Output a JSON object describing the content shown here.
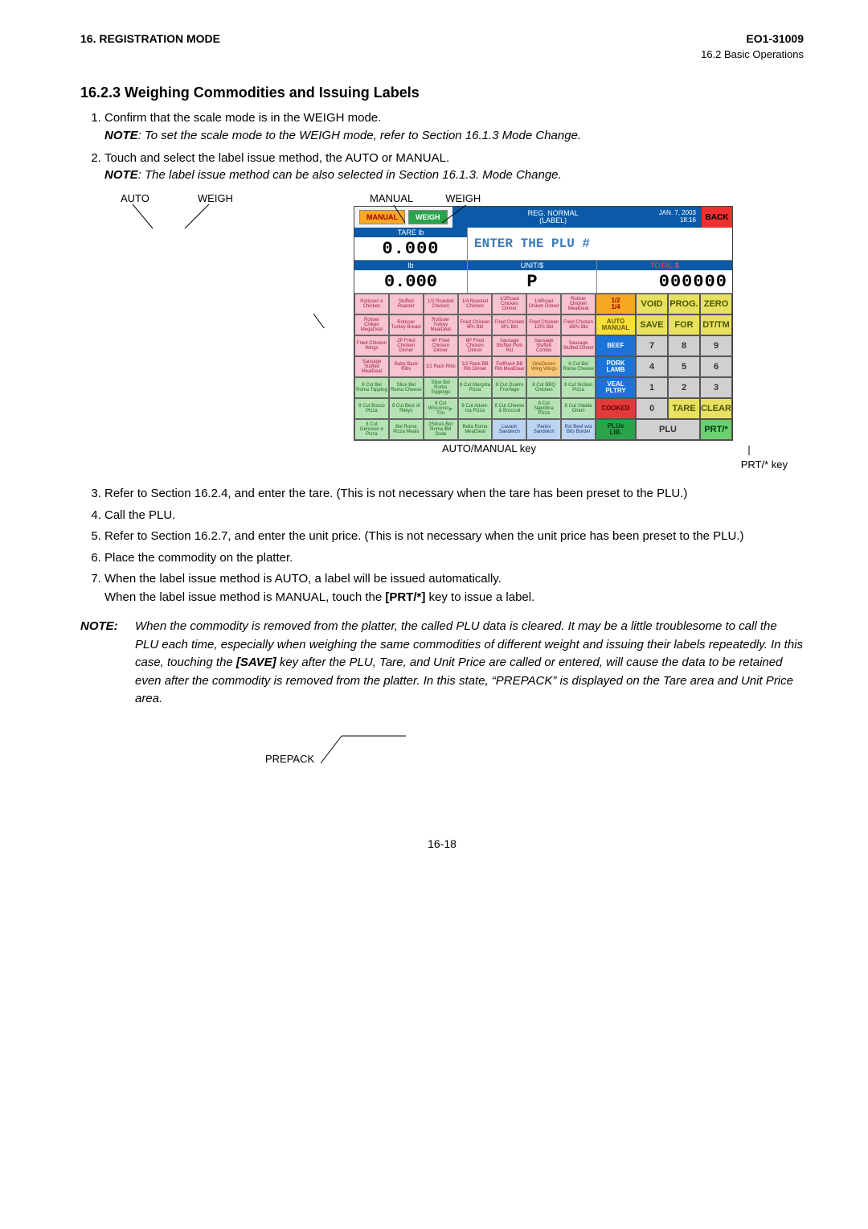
{
  "header": {
    "left": "16. REGISTRATION MODE",
    "right": "EO1-31009",
    "sub": "16.2 Basic Operations"
  },
  "section_title": "16.2.3  Weighing Commodities and Issuing Labels",
  "steps_a": [
    {
      "text": "Confirm that the scale mode is in the WEIGH mode.",
      "note": "To set the scale mode to the WEIGH mode, refer to Section 16.1.3 Mode Change."
    },
    {
      "text": "Touch and select the label issue method, the AUTO or MANUAL.",
      "note": "The label issue method can be also selected in Section 16.1.3. Mode Change."
    }
  ],
  "callouts": {
    "left_labels": [
      "AUTO",
      "WEIGH"
    ],
    "right_labels": [
      "MANUAL",
      "WEIGH"
    ],
    "bottom_left": "AUTO/MANUAL key",
    "bottom_right": "PRT/* key"
  },
  "pos": {
    "tabs": {
      "manual": "MANUAL",
      "weigh": "WEIGH"
    },
    "reg_line1": "REG. NORMAL",
    "reg_line2": "(LABEL)",
    "date_line1": "JAN.  7, 2003",
    "date_line2": "18:16",
    "back": "BACK",
    "tare_hdr": "TARE  lb",
    "tare_val": "0.000",
    "enter_plu": "ENTER THE PLU #",
    "lb_hdr": "lb",
    "lb_val": "0.000",
    "unit_hdr": "UNIT/$",
    "unit_val": "P",
    "total_hdr_a": "TOTAL ",
    "total_hdr_b": "$",
    "total_val": "000000",
    "plu_rows": [
      [
        {
          "t": "Rotisseri e Chicken",
          "c": "plu-pink"
        },
        {
          "t": "Stuffed Roaster",
          "c": "plu-pink"
        },
        {
          "t": "1/2 Roasted Chicken",
          "c": "plu-pink"
        },
        {
          "t": "1/4 Roasted Chicken",
          "c": "plu-pink"
        },
        {
          "t": "1/2Roast Chicken Dinner",
          "c": "plu-pink"
        },
        {
          "t": "1/4Roast Chiken Dinner",
          "c": "plu-pink"
        },
        {
          "t": "Rotiser Chicken MealDeal",
          "c": "plu-pink"
        }
      ],
      [
        {
          "t": "Rotiser Chiken MegaDeal",
          "c": "plu-pink"
        },
        {
          "t": "Rotisser Turkey Breast",
          "c": "plu-pink"
        },
        {
          "t": "Rotisser Turkey MealDeal",
          "c": "plu-pink"
        },
        {
          "t": "Fried Chicken 4Pc Bkt",
          "c": "plu-pink"
        },
        {
          "t": "Fried Chicken 8Pc Bkt",
          "c": "plu-pink"
        },
        {
          "t": "Fried Chicken 12Pc Bkt",
          "c": "plu-pink"
        },
        {
          "t": "Fried Chicken 16Pc Bkt",
          "c": "plu-pink"
        }
      ],
      [
        {
          "t": "Fried Chicken Wings",
          "c": "plu-pink"
        },
        {
          "t": "2P Fried Chicken Dinner",
          "c": "plu-pink"
        },
        {
          "t": "4P Fried Chicken Dinner",
          "c": "plu-pink"
        },
        {
          "t": "8P Fried Chicken Dinner",
          "c": "plu-pink"
        },
        {
          "t": "Sausage Stuffed Pork Rst",
          "c": "plu-pink"
        },
        {
          "t": "Sausage Stuffed Combo",
          "c": "plu-pink"
        },
        {
          "t": "Sausage Stuffed Dinner",
          "c": "plu-pink"
        }
      ],
      [
        {
          "t": "Sausage Stuffed MealDeal",
          "c": "plu-pink"
        },
        {
          "t": "Baby Back Ribs",
          "c": "plu-pink"
        },
        {
          "t": "1/2 Rack Ribs",
          "c": "plu-pink"
        },
        {
          "t": "1/2 Rack BB Rib Dinner",
          "c": "plu-pink"
        },
        {
          "t": "FullRack BB Rib MealDeal",
          "c": "plu-pink"
        },
        {
          "t": "OneDozen Wing Wings",
          "c": "plu-orange"
        },
        {
          "t": "8 Cut Bel Roma Cheese",
          "c": "plu-green"
        }
      ],
      [
        {
          "t": "8 Cut Bel Roma Topping",
          "c": "plu-green"
        },
        {
          "t": "Slice Bel Roma Cheese",
          "c": "plu-green"
        },
        {
          "t": "Slice Bel Roma Toppings",
          "c": "plu-green"
        },
        {
          "t": "8 Cut Margrita Pizza",
          "c": "plu-green"
        },
        {
          "t": "8 Cut Quatro Fromage",
          "c": "plu-green"
        },
        {
          "t": "8 Cut BBQ Chicken",
          "c": "plu-green"
        },
        {
          "t": "8 Cut Sicilian Pizza",
          "c": "plu-green"
        }
      ],
      [
        {
          "t": "8 Cut Bosco Pizza",
          "c": "plu-green"
        },
        {
          "t": "8 Cut Best of Rileys",
          "c": "plu-green"
        },
        {
          "t": "8 Cut Wisconsnيو Trio",
          "c": "plu-green"
        },
        {
          "t": "8 Cut Adam-ica Pizza",
          "c": "plu-green"
        },
        {
          "t": "8 Cut Cheese & Broccoli",
          "c": "plu-green"
        },
        {
          "t": "8 Cut Napoltna Pizza",
          "c": "plu-green"
        },
        {
          "t": "8 Cut Vidalia Onion",
          "c": "plu-green"
        }
      ],
      [
        {
          "t": "8 Cut Genoves e Pizza",
          "c": "plu-green"
        },
        {
          "t": "Bel Roma Pizza Meals",
          "c": "plu-green"
        },
        {
          "t": "2Slices Bel Roma $M Soda",
          "c": "plu-green"
        },
        {
          "t": "Bella Roma MealDeal",
          "c": "plu-green"
        },
        {
          "t": "Lavash Sandwich",
          "c": "plu-blue"
        },
        {
          "t": "Panini Sandwich",
          "c": "plu-blue"
        },
        {
          "t": "Rst Beef w/a Bits Bordel",
          "c": "plu-blue"
        }
      ]
    ],
    "side_buttons": [
      {
        "l1": "1/2",
        "l2": "1/4",
        "cls": "sb-orange"
      },
      {
        "l1": "AUTO",
        "l2": "MANUAL",
        "cls": "sb-yellow"
      },
      {
        "l1": "BEEF",
        "l2": "",
        "cls": "sb-blue"
      },
      {
        "l1": "PORK",
        "l2": "LAMB",
        "cls": "sb-blue"
      },
      {
        "l1": "VEAL",
        "l2": "PLTRY",
        "cls": "sb-blue"
      },
      {
        "l1": "COOKED",
        "l2": "",
        "cls": "sb-red"
      },
      {
        "l1": "PLUs",
        "l2": "LIB.",
        "cls": "sb-green"
      }
    ],
    "func_rows": [
      [
        {
          "t": "VOID",
          "c": "fc-yellow"
        },
        {
          "t": "PROG.",
          "c": "fc-yellow"
        },
        {
          "t": "ZERO",
          "c": "fc-yellow"
        }
      ],
      [
        {
          "t": "SAVE",
          "c": "fc-yellow"
        },
        {
          "t": "FOR",
          "c": "fc-yellow"
        },
        {
          "t": "DT/TM",
          "c": "fc-yellow"
        }
      ],
      [
        {
          "t": "7",
          "c": "fc-grey"
        },
        {
          "t": "8",
          "c": "fc-grey"
        },
        {
          "t": "9",
          "c": "fc-grey"
        }
      ],
      [
        {
          "t": "4",
          "c": "fc-grey"
        },
        {
          "t": "5",
          "c": "fc-grey"
        },
        {
          "t": "6",
          "c": "fc-grey"
        }
      ],
      [
        {
          "t": "1",
          "c": "fc-grey"
        },
        {
          "t": "2",
          "c": "fc-grey"
        },
        {
          "t": "3",
          "c": "fc-grey"
        }
      ],
      [
        {
          "t": "0",
          "c": "fc-grey"
        },
        {
          "t": "TARE",
          "c": "fc-yellow"
        },
        {
          "t": "CLEAR",
          "c": "fc-yellow"
        }
      ]
    ],
    "plu_btn": "PLU",
    "prt_btn": "PRT/*"
  },
  "steps_b": [
    "Refer to Section 16.2.4, and enter the tare.  (This is not necessary when the tare has been preset to the PLU.)",
    "Call the PLU.",
    "Refer to Section 16.2.7, and enter the unit price.  (This is not necessary when the unit price has been preset to the PLU.)",
    "Place the commodity on the platter.",
    "When the label issue method is AUTO, a label will be issued automatically.\nWhen the label issue method is MANUAL, touch the [PRT/*] key to issue a label."
  ],
  "note_block": {
    "label": "NOTE:",
    "body": "When the commodity is removed from the platter, the called PLU data is cleared.  It may be a little troublesome to call the PLU each time, especially when weighing the same commodities of different weight and issuing their labels repeatedly.  In this case, touching the [SAVE] key after the PLU, Tare, and Unit Price are called or entered, will cause the data to be retained even after the commodity is removed from the platter.  In this state, “PREPACK” is displayed on the Tare area and Unit Price area."
  },
  "prepack_label": "PREPACK",
  "page_num": "16-18"
}
